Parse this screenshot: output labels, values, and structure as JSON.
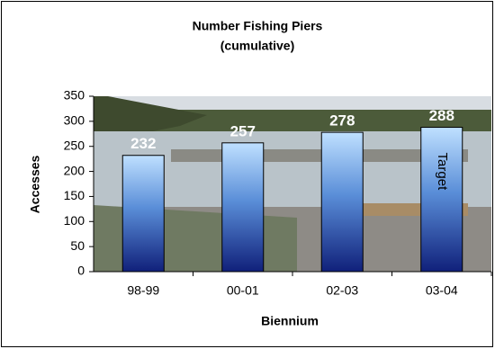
{
  "chart_data": {
    "type": "bar",
    "title": "Number Fishing Piers",
    "subtitle": "(cumulative)",
    "x_label": "Biennium",
    "y_label": "Accesses",
    "categories": [
      "98-99",
      "00-01",
      "02-03",
      "03-04"
    ],
    "values": [
      232,
      257,
      278,
      288
    ],
    "annotation": "Target",
    "ylim": [
      0,
      350
    ],
    "yticks": [
      0,
      50,
      100,
      150,
      200,
      250,
      300,
      350
    ]
  }
}
